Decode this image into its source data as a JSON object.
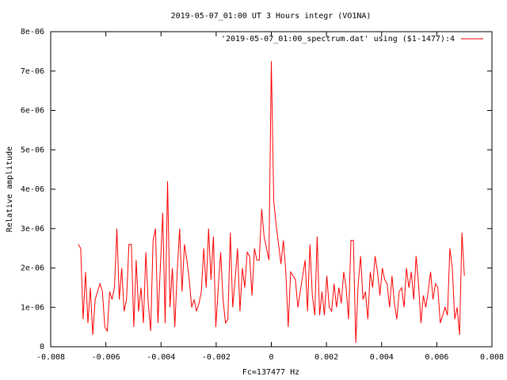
{
  "chart_data": {
    "type": "line",
    "title": "2019-05-07_01:00 UT 3 Hours integr (VO1NA)",
    "x_label": "Fc=137477 Hz",
    "y_label": "Relative amplitude",
    "legend_position": "top-right",
    "grid": false,
    "x": [
      -0.007,
      -0.0069125,
      -0.006825,
      -0.0067375,
      -0.00665,
      -0.0065625,
      -0.006475,
      -0.0063875,
      -0.0063,
      -0.0062125,
      -0.006125,
      -0.0060375,
      -0.00595,
      -0.0058625,
      -0.005775,
      -0.0056875,
      -0.0056,
      -0.0055125,
      -0.005425,
      -0.0053375,
      -0.00525,
      -0.0051625,
      -0.005075,
      -0.0049875,
      -0.0049,
      -0.0048125,
      -0.004725,
      -0.0046375,
      -0.00455,
      -0.0044625,
      -0.004375,
      -0.0042875,
      -0.0042,
      -0.0041125,
      -0.004025,
      -0.0039375,
      -0.00385,
      -0.0037625,
      -0.003675,
      -0.0035875,
      -0.0035,
      -0.0034125,
      -0.003325,
      -0.0032375,
      -0.00315,
      -0.0030625,
      -0.002975,
      -0.0028875,
      -0.0028,
      -0.0027125,
      -0.002625,
      -0.0025375,
      -0.00245,
      -0.0023625,
      -0.002275,
      -0.0021875,
      -0.0021,
      -0.0020125,
      -0.001925,
      -0.0018375,
      -0.00175,
      -0.0016625,
      -0.001575,
      -0.0014875,
      -0.0014,
      -0.0013125,
      -0.001225,
      -0.0011375,
      -0.00105,
      -0.0009625,
      -0.000875,
      -0.0007875,
      -0.0007,
      -0.0006125,
      -0.000525,
      -0.0004375,
      -0.00035,
      -0.0002625,
      -0.000175,
      -8.75e-05,
      0,
      8.75e-05,
      0.000175,
      0.0002625,
      0.00035,
      0.0004375,
      0.000525,
      0.0006125,
      0.0007,
      0.0007875,
      0.000875,
      0.0009625,
      0.00105,
      0.0011375,
      0.001225,
      0.0013125,
      0.0014,
      0.0014875,
      0.001575,
      0.0016625,
      0.00175,
      0.0018375,
      0.001925,
      0.0020125,
      0.0021,
      0.0021875,
      0.002275,
      0.0023625,
      0.00245,
      0.0025375,
      0.002625,
      0.0027125,
      0.0028,
      0.0028875,
      0.002975,
      0.0030625,
      0.00315,
      0.0032375,
      0.003325,
      0.0034125,
      0.0035,
      0.0035875,
      0.003675,
      0.0037625,
      0.00385,
      0.0039375,
      0.004025,
      0.0041125,
      0.0042,
      0.0042875,
      0.004375,
      0.0044625,
      0.00455,
      0.0046375,
      0.004725,
      0.0048125,
      0.0049,
      0.0049875,
      0.005075,
      0.0051625,
      0.00525,
      0.0053375,
      0.005425,
      0.0055125,
      0.0056,
      0.0056875,
      0.005775,
      0.0058625,
      0.00595,
      0.0060375,
      0.006125,
      0.0062125,
      0.0063,
      0.0063875,
      0.006475,
      0.0065625,
      0.00665,
      0.0067375,
      0.006825,
      0.0069125,
      0.007
    ],
    "series": [
      {
        "name": "'2019-05-07_01:00_spectrum.dat' using ($1-1477):4",
        "color": "#ff0000",
        "values": [
          2.6e-06,
          2.5e-06,
          7e-07,
          1.9e-06,
          6e-07,
          1.5e-06,
          3e-07,
          1.2e-06,
          1.4e-06,
          1.6e-06,
          1.4e-06,
          5e-07,
          4e-07,
          1.4e-06,
          1.2e-06,
          1.5e-06,
          3e-06,
          1.2e-06,
          2e-06,
          9e-07,
          1.2e-06,
          2.6e-06,
          2.6e-06,
          5e-07,
          2.2e-06,
          9e-07,
          1.5e-06,
          6e-07,
          2.4e-06,
          1.1e-06,
          4e-07,
          2.7e-06,
          3e-06,
          6e-07,
          2e-06,
          3.4e-06,
          6e-07,
          4.2e-06,
          1e-06,
          2e-06,
          5e-07,
          1.9e-06,
          3e-06,
          1.4e-06,
          2.6e-06,
          2.2e-06,
          1.7e-06,
          1e-06,
          1.2e-06,
          9e-07,
          1.1e-06,
          1.4e-06,
          2.5e-06,
          1.5e-06,
          3e-06,
          1.7e-06,
          2.8e-06,
          5e-07,
          1.5e-06,
          2.4e-06,
          1.2e-06,
          6e-07,
          7e-07,
          2.9e-06,
          1e-06,
          1.7e-06,
          2.5e-06,
          9e-07,
          2e-06,
          1.5e-06,
          2.4e-06,
          2.3e-06,
          1.3e-06,
          2.5e-06,
          2.2e-06,
          2.2e-06,
          3.5e-06,
          2.8e-06,
          2.5e-06,
          2.2e-06,
          7.25e-06,
          3.7e-06,
          3.1e-06,
          2.6e-06,
          2.1e-06,
          2.7e-06,
          1.9e-06,
          5e-07,
          1.9e-06,
          1.8e-06,
          1.7e-06,
          1e-06,
          1.4e-06,
          1.8e-06,
          2.2e-06,
          9e-07,
          2.6e-06,
          1.3e-06,
          8e-07,
          2.8e-06,
          8e-07,
          1.4e-06,
          8e-07,
          1.8e-06,
          1e-06,
          9e-07,
          1.6e-06,
          1e-06,
          1.5e-06,
          1.1e-06,
          1.9e-06,
          1.5e-06,
          7e-07,
          2.7e-06,
          2.7e-06,
          1e-07,
          1.6e-06,
          2.3e-06,
          1.2e-06,
          1.4e-06,
          7e-07,
          1.9e-06,
          1.5e-06,
          2.3e-06,
          1.9e-06,
          1.3e-06,
          2e-06,
          1.7e-06,
          1.6e-06,
          1e-06,
          1.8e-06,
          1.1e-06,
          7e-07,
          1.4e-06,
          1.5e-06,
          1e-06,
          2e-06,
          1.5e-06,
          1.9e-06,
          1.2e-06,
          2.3e-06,
          1.6e-06,
          6e-07,
          1.3e-06,
          1e-06,
          1.4e-06,
          1.9e-06,
          1.2e-06,
          1.6e-06,
          1.5e-06,
          6e-07,
          8e-07,
          1e-06,
          8e-07,
          2.5e-06,
          2e-06,
          7e-07,
          1e-06,
          3e-07,
          2.9e-06,
          1.8e-06
        ]
      }
    ],
    "xlim": [
      -0.008,
      0.008
    ],
    "xticks": [
      -0.008,
      -0.006,
      -0.004,
      -0.002,
      0,
      0.002,
      0.004,
      0.006,
      0.008
    ],
    "ylim": [
      0,
      8e-06
    ],
    "yticks": [
      0,
      {
        "value": 1e-06,
        "label": "1e-06"
      },
      {
        "value": 2e-06,
        "label": "2e-06"
      },
      {
        "value": 3e-06,
        "label": "3e-06"
      },
      {
        "value": 4e-06,
        "label": "4e-06"
      },
      {
        "value": 5e-06,
        "label": "5e-06"
      },
      {
        "value": 6e-06,
        "label": "6e-06"
      },
      {
        "value": 7e-06,
        "label": "7e-06"
      },
      {
        "value": 8e-06,
        "label": "8e-06"
      }
    ]
  }
}
